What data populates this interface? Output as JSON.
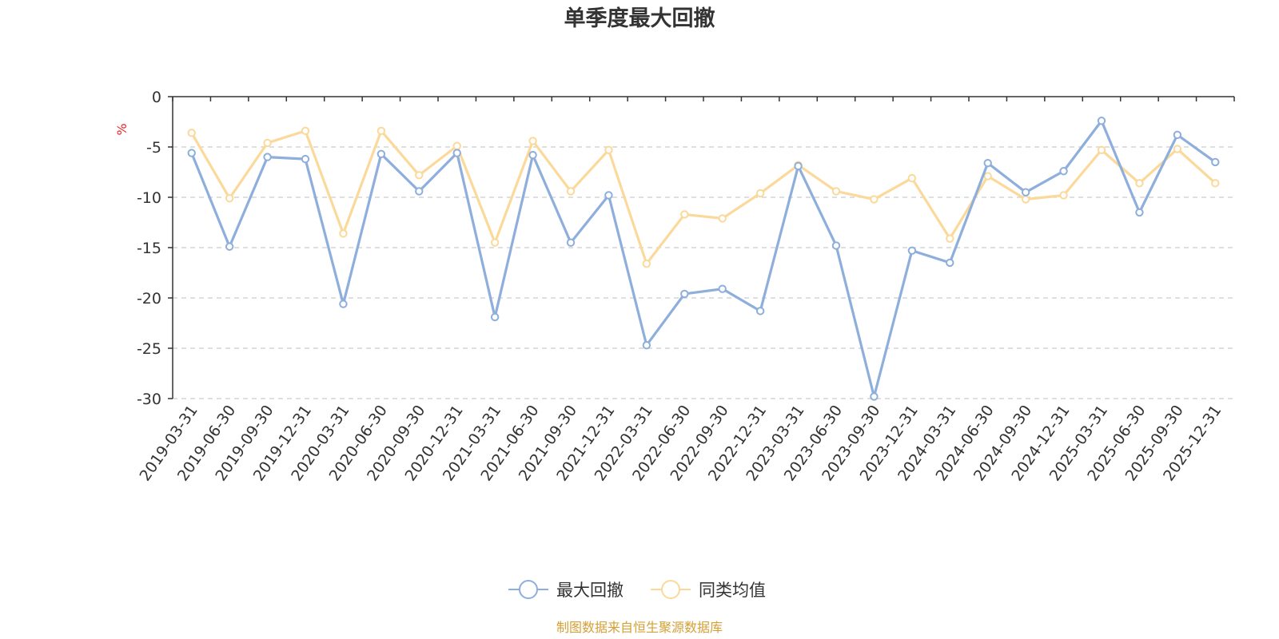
{
  "chart_data": {
    "type": "line",
    "title": "单季度最大回撤",
    "ylabel": "%",
    "ylim": [
      -30,
      0
    ],
    "yticks": [
      0,
      -5,
      -10,
      -15,
      -20,
      -25,
      -30
    ],
    "grid": true,
    "legend_position": "bottom",
    "categories": [
      "2019-03-31",
      "2019-06-30",
      "2019-09-30",
      "2019-12-31",
      "2020-03-31",
      "2020-06-30",
      "2020-09-30",
      "2020-12-31",
      "2021-03-31",
      "2021-06-30",
      "2021-09-30",
      "2021-12-31",
      "2022-03-31",
      "2022-06-30",
      "2022-09-30",
      "2022-12-31",
      "2023-03-31",
      "2023-06-30",
      "2023-09-30",
      "2023-12-31",
      "2024-03-31",
      "2024-06-30",
      "2024-09-30",
      "2024-12-31",
      "2025-03-31",
      "2025-06-30",
      "2025-09-30",
      "2025-12-31"
    ],
    "series": [
      {
        "name": "最大回撤",
        "color": "#8eaedc",
        "values": [
          -5.6,
          -14.9,
          -6.0,
          -6.2,
          -20.6,
          -5.7,
          -9.4,
          -5.6,
          -21.9,
          -5.8,
          -14.5,
          -9.8,
          -24.7,
          -19.6,
          -19.1,
          -21.3,
          -6.9,
          -14.8,
          -29.8,
          -15.3,
          -16.5,
          -6.6,
          -9.5,
          -7.4,
          -2.4,
          -11.5,
          -3.8,
          -6.5
        ]
      },
      {
        "name": "同类均值",
        "color": "#fbd99b",
        "values": [
          -3.6,
          -10.1,
          -4.6,
          -3.4,
          -13.6,
          -3.4,
          -7.8,
          -4.9,
          -14.5,
          -4.4,
          -9.4,
          -5.3,
          -16.6,
          -11.7,
          -12.1,
          -9.6,
          -6.8,
          -9.4,
          -10.2,
          -8.1,
          -14.1,
          -7.9,
          -10.2,
          -9.8,
          -5.3,
          -8.6,
          -5.2,
          -8.6
        ]
      }
    ],
    "source": "制图数据来自恒生聚源数据库",
    "colors": {
      "axis": "#333333",
      "grid": "#cccccc",
      "unit": "#e8262b",
      "source": "#d4a037"
    }
  }
}
